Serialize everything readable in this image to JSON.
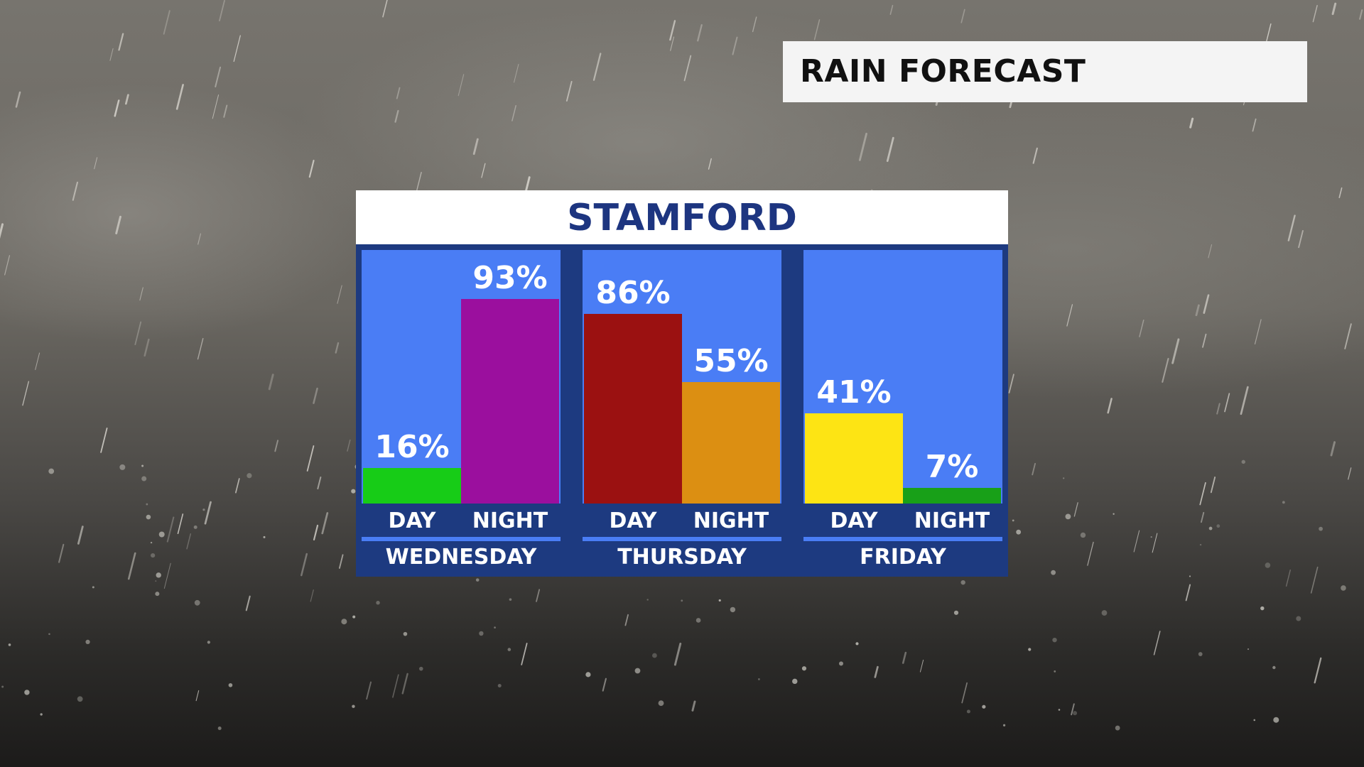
{
  "banner": {
    "title": "RAIN FORECAST"
  },
  "location": {
    "name": "STAMFORD"
  },
  "chart_data": {
    "type": "bar",
    "title": "STAMFORD",
    "unit": "%",
    "ylim": [
      0,
      100
    ],
    "groups": [
      {
        "day": "WEDNESDAY",
        "bars": [
          {
            "period": "DAY",
            "value": 16,
            "label": "16%",
            "color": "#17cc17"
          },
          {
            "period": "NIGHT",
            "value": 93,
            "label": "93%",
            "color": "#9b0f9e"
          }
        ]
      },
      {
        "day": "THURSDAY",
        "bars": [
          {
            "period": "DAY",
            "value": 86,
            "label": "86%",
            "color": "#9b1111"
          },
          {
            "period": "NIGHT",
            "value": 55,
            "label": "55%",
            "color": "#dc8f12"
          }
        ]
      },
      {
        "day": "FRIDAY",
        "bars": [
          {
            "period": "DAY",
            "value": 41,
            "label": "41%",
            "color": "#fde414"
          },
          {
            "period": "NIGHT",
            "value": 7,
            "label": "7%",
            "color": "#18a018"
          }
        ]
      }
    ]
  }
}
